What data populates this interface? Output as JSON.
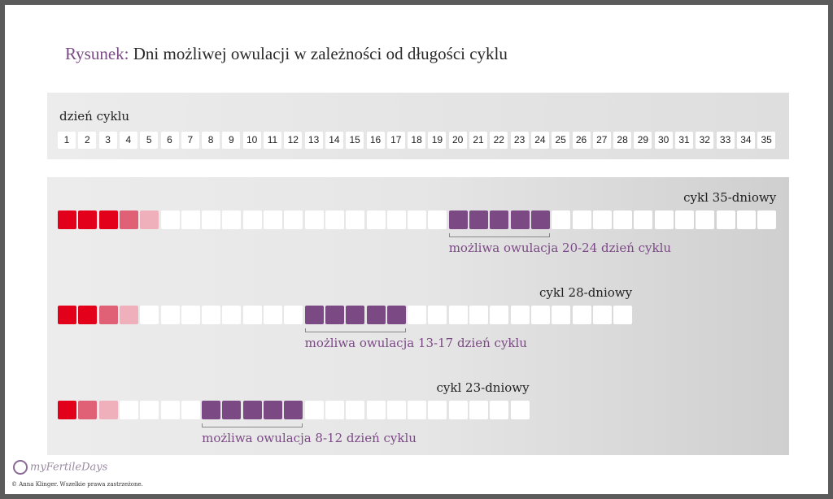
{
  "title": {
    "prefix": "Rysunek:",
    "text": " Dni możliwej owulacji w zależności od długości cyklu"
  },
  "days_label": "dzień cyklu",
  "days": [
    "1",
    "2",
    "3",
    "4",
    "5",
    "6",
    "7",
    "8",
    "9",
    "10",
    "11",
    "12",
    "13",
    "14",
    "15",
    "16",
    "17",
    "18",
    "19",
    "20",
    "21",
    "22",
    "23",
    "24",
    "25",
    "26",
    "27",
    "28",
    "29",
    "30",
    "31",
    "32",
    "33",
    "34",
    "35"
  ],
  "colors": {
    "red": "#e2001a",
    "mid_pink": "#e06075",
    "light_pink": "#f0b0bb",
    "purple": "#7b4a85",
    "empty": "#ffffff"
  },
  "cycles": [
    {
      "label": "cykl 35-dniowy",
      "length": 35,
      "bleeding": [
        "red",
        "red",
        "red",
        "mid_pink",
        "light_pink"
      ],
      "ovulation_start": 20,
      "ovulation_end": 24,
      "ovulation_label": "możliwa owulacja 20-24 dzień cyklu"
    },
    {
      "label": "cykl 28-dniowy",
      "length": 28,
      "bleeding": [
        "red",
        "red",
        "mid_pink",
        "light_pink"
      ],
      "ovulation_start": 13,
      "ovulation_end": 17,
      "ovulation_label": "możliwa owulacja 13-17 dzień cyklu"
    },
    {
      "label": "cykl 23-dniowy",
      "length": 23,
      "bleeding": [
        "red",
        "mid_pink",
        "light_pink"
      ],
      "ovulation_start": 8,
      "ovulation_end": 12,
      "ovulation_label": "możliwa owulacja 8-12 dzień cyklu"
    }
  ],
  "logo": "myFertileDays",
  "copyright": "© Anna Klinger. Wszelkie prawa zastrzeżone."
}
